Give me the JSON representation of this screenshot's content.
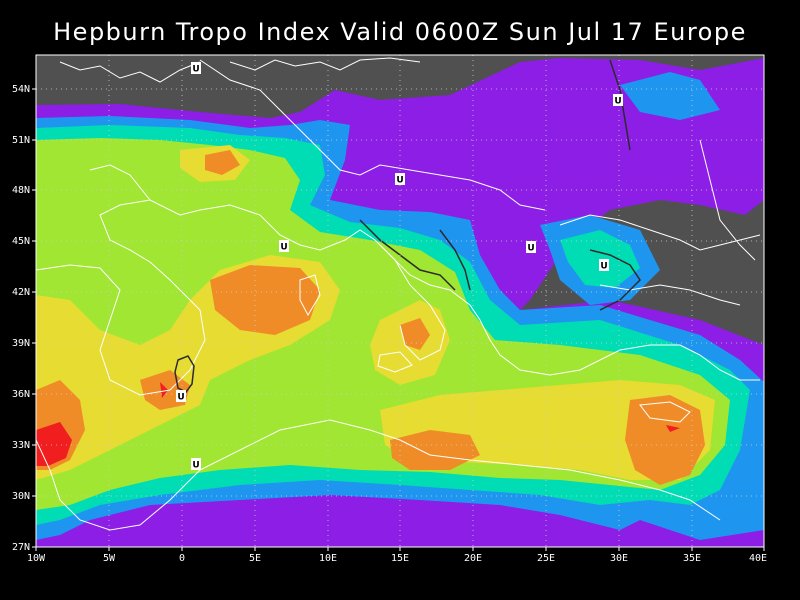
{
  "title": "Hepburn Tropo Index Valid 0600Z Sun Jul 17 Europe",
  "lat_labels": [
    "54N",
    "51N",
    "48N",
    "45N",
    "42N",
    "39N",
    "36N",
    "33N",
    "30N",
    "27N"
  ],
  "lon_labels": [
    "10W",
    "5W",
    "0",
    "5E",
    "10E",
    "15E",
    "20E",
    "25E",
    "30E",
    "35E",
    "40E"
  ],
  "marker_label": "U",
  "colors": {
    "background": "#000000",
    "land_no_data": "#505050",
    "level_1": "#8c1ee6",
    "level_2": "#1e96f0",
    "level_3": "#00dcb4",
    "level_4": "#a0e632",
    "level_5": "#e6dc32",
    "level_6": "#f08c28",
    "level_7": "#f01e1e",
    "coastline": "#ffffff",
    "grid": "#cfcfcf"
  }
}
